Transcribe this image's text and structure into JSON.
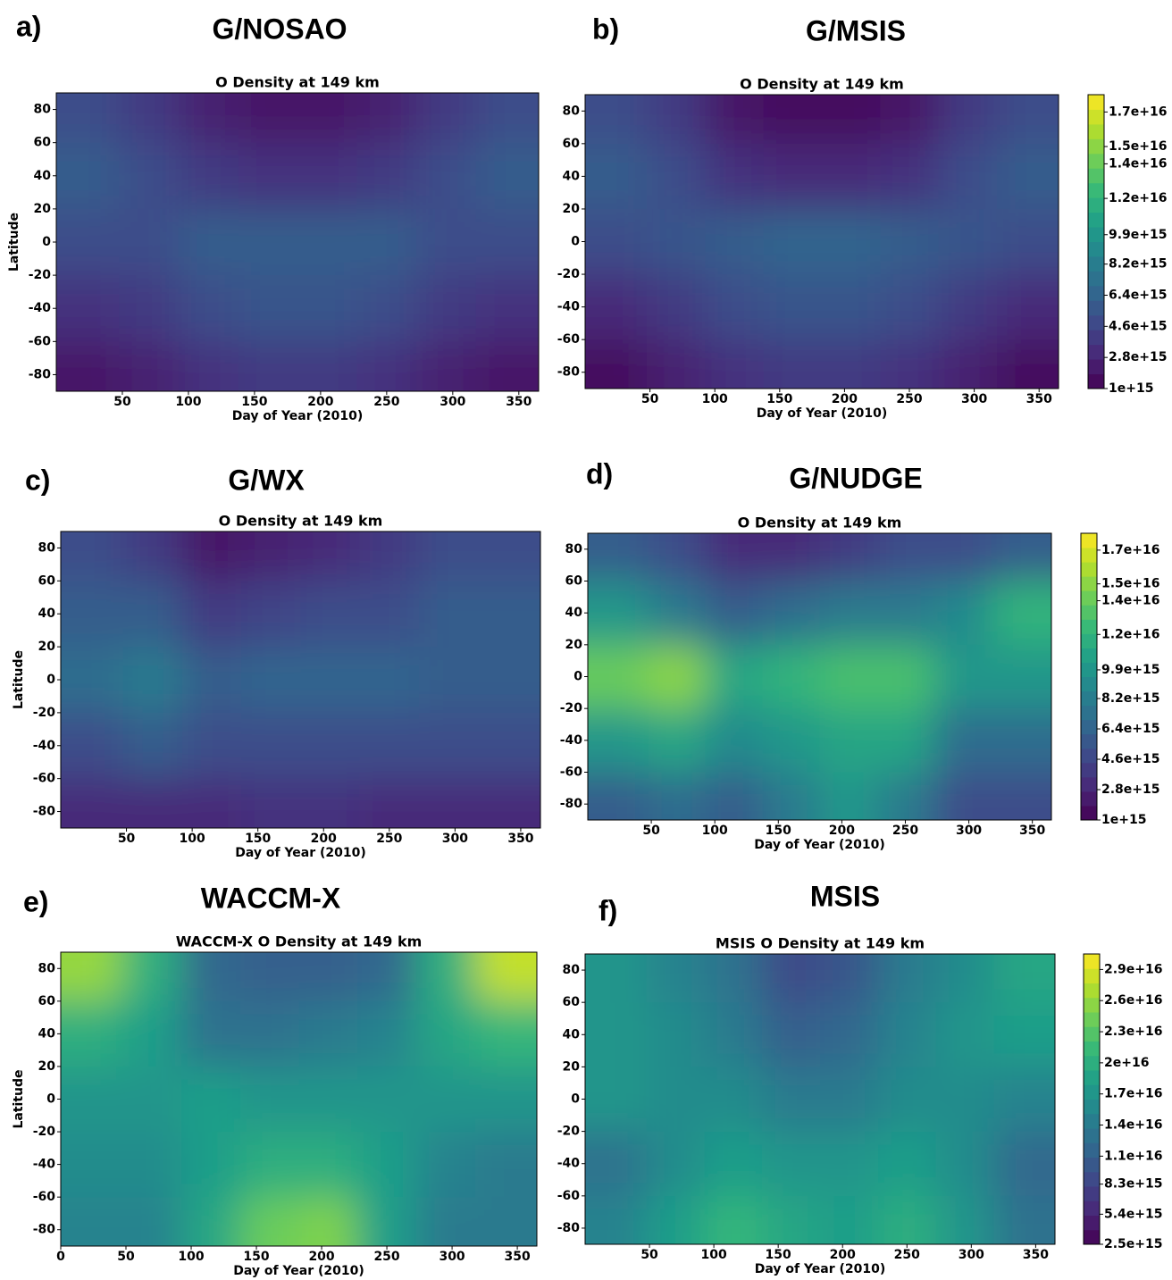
{
  "colormap": [
    "#440154",
    "#482878",
    "#3e4989",
    "#31688e",
    "#26828e",
    "#1f9e89",
    "#35b779",
    "#6ece58",
    "#b5de2b",
    "#fde725"
  ],
  "chart_data": [
    {
      "type": "contour",
      "label": "a)",
      "heading": "G/NOSAO",
      "title": "O Density at 149 km",
      "xlabel": "Day of Year (2010)",
      "ylabel": "Latitude",
      "x": [
        25,
        70,
        115,
        160,
        205,
        250,
        295,
        340
      ],
      "y": [
        80,
        40,
        0,
        -40,
        -80
      ],
      "z": [
        [
          5000000000000000.0,
          4000000000000000.0,
          2500000000000000.0,
          2000000000000000.0,
          2000000000000000.0,
          2500000000000000.0,
          4000000000000000.0,
          5000000000000000.0
        ],
        [
          6000000000000000.0,
          5000000000000000.0,
          4000000000000000.0,
          3500000000000000.0,
          3500000000000000.0,
          4000000000000000.0,
          5000000000000000.0,
          6000000000000000.0
        ],
        [
          5000000000000000.0,
          5000000000000000.0,
          6000000000000000.0,
          6000000000000000.0,
          6000000000000000.0,
          6000000000000000.0,
          5000000000000000.0,
          5000000000000000.0
        ],
        [
          3500000000000000.0,
          4000000000000000.0,
          5000000000000000.0,
          5500000000000000.0,
          5500000000000000.0,
          5000000000000000.0,
          4000000000000000.0,
          3500000000000000.0
        ],
        [
          2000000000000000.0,
          2500000000000000.0,
          3500000000000000.0,
          4000000000000000.0,
          4000000000000000.0,
          3500000000000000.0,
          2500000000000000.0,
          2000000000000000.0
        ]
      ],
      "clim": [
        1000000000000000.0,
        1.8e+16
      ],
      "xlim": [
        0,
        365
      ],
      "ylim": [
        -90,
        90
      ],
      "xticks": [
        50,
        100,
        150,
        200,
        250,
        300,
        350
      ],
      "yticks": [
        -80,
        -60,
        -40,
        -20,
        0,
        20,
        40,
        60,
        80
      ]
    },
    {
      "type": "contour",
      "label": "b)",
      "heading": "G/MSIS",
      "title": "O Density at 149 km",
      "xlabel": "Day of Year (2010)",
      "x": [
        25,
        70,
        115,
        160,
        205,
        250,
        295,
        340
      ],
      "y": [
        80,
        40,
        0,
        -40,
        -80
      ],
      "z": [
        [
          5000000000000000.0,
          4000000000000000.0,
          2000000000000000.0,
          1500000000000000.0,
          1500000000000000.0,
          2000000000000000.0,
          4000000000000000.0,
          5000000000000000.0
        ],
        [
          6000000000000000.0,
          5000000000000000.0,
          3500000000000000.0,
          3000000000000000.0,
          3000000000000000.0,
          3500000000000000.0,
          5000000000000000.0,
          6000000000000000.0
        ],
        [
          5000000000000000.0,
          5500000000000000.0,
          6000000000000000.0,
          6500000000000000.0,
          6500000000000000.0,
          6000000000000000.0,
          5500000000000000.0,
          5000000000000000.0
        ],
        [
          3000000000000000.0,
          4000000000000000.0,
          5000000000000000.0,
          5500000000000000.0,
          5500000000000000.0,
          5000000000000000.0,
          4000000000000000.0,
          3000000000000000.0
        ],
        [
          1500000000000000.0,
          2500000000000000.0,
          3500000000000000.0,
          4000000000000000.0,
          4000000000000000.0,
          3500000000000000.0,
          2500000000000000.0,
          1500000000000000.0
        ]
      ],
      "clim": [
        1000000000000000.0,
        1.8e+16
      ],
      "xlim": [
        0,
        365
      ],
      "ylim": [
        -90,
        90
      ],
      "xticks": [
        50,
        100,
        150,
        200,
        250,
        300,
        350
      ],
      "yticks": [
        -80,
        -60,
        -40,
        -20,
        0,
        20,
        40,
        60,
        80
      ],
      "colorbar": {
        "lim": [
          1000000000000000.0,
          1.8e+16
        ],
        "ticks": [
          {
            "value": 1000000000000000.0,
            "label": "1e+15"
          },
          {
            "value": 2800000000000000.0,
            "label": "2.8e+15"
          },
          {
            "value": 4600000000000000.0,
            "label": "4.6e+15"
          },
          {
            "value": 6400000000000000.0,
            "label": "6.4e+15"
          },
          {
            "value": 8200000000000000.0,
            "label": "8.2e+15"
          },
          {
            "value": 9900000000000000.0,
            "label": "9.9e+15"
          },
          {
            "value": 1.2e+16,
            "label": "1.2e+16"
          },
          {
            "value": 1.4e+16,
            "label": "1.4e+16"
          },
          {
            "value": 1.5e+16,
            "label": "1.5e+16"
          },
          {
            "value": 1.7e+16,
            "label": "1.7e+16"
          }
        ]
      }
    },
    {
      "type": "contour",
      "label": "c)",
      "heading": "G/WX",
      "title": "O Density at 149 km",
      "xlabel": "Day of Year (2010)",
      "ylabel": "Latitude",
      "x": [
        25,
        70,
        115,
        160,
        205,
        250,
        295,
        340
      ],
      "y": [
        80,
        40,
        0,
        -40,
        -80
      ],
      "z": [
        [
          5000000000000000.0,
          4000000000000000.0,
          2000000000000000.0,
          2500000000000000.0,
          3000000000000000.0,
          4000000000000000.0,
          5000000000000000.0,
          5000000000000000.0
        ],
        [
          6000000000000000.0,
          6000000000000000.0,
          4000000000000000.0,
          4500000000000000.0,
          5000000000000000.0,
          5000000000000000.0,
          6000000000000000.0,
          6000000000000000.0
        ],
        [
          7000000000000000.0,
          8000000000000000.0,
          6000000000000000.0,
          6500000000000000.0,
          6500000000000000.0,
          6500000000000000.0,
          6000000000000000.0,
          6000000000000000.0
        ],
        [
          5000000000000000.0,
          6000000000000000.0,
          5000000000000000.0,
          5000000000000000.0,
          5000000000000000.0,
          5000000000000000.0,
          5000000000000000.0,
          5000000000000000.0
        ],
        [
          3000000000000000.0,
          3000000000000000.0,
          3000000000000000.0,
          3500000000000000.0,
          3500000000000000.0,
          3000000000000000.0,
          3000000000000000.0,
          3000000000000000.0
        ]
      ],
      "clim": [
        1000000000000000.0,
        1.8e+16
      ],
      "xlim": [
        0,
        365
      ],
      "ylim": [
        -90,
        90
      ],
      "xticks": [
        50,
        100,
        150,
        200,
        250,
        300,
        350
      ],
      "yticks": [
        -80,
        -60,
        -40,
        -20,
        0,
        20,
        40,
        60,
        80
      ]
    },
    {
      "type": "contour",
      "label": "d)",
      "heading": "G/NUDGE",
      "title": "O Density at 149 km",
      "xlabel": "Day of Year (2010)",
      "x": [
        25,
        70,
        115,
        160,
        205,
        250,
        295,
        340
      ],
      "y": [
        80,
        40,
        0,
        -40,
        -80
      ],
      "z": [
        [
          6000000000000000.0,
          5000000000000000.0,
          3000000000000000.0,
          3000000000000000.0,
          4000000000000000.0,
          5000000000000000.0,
          5000000000000000.0,
          6000000000000000.0
        ],
        [
          1e+16,
          8000000000000000.0,
          6000000000000000.0,
          7000000000000000.0,
          8000000000000000.0,
          8000000000000000.0,
          9000000000000000.0,
          1.2e+16
        ],
        [
          1.4e+16,
          1.5e+16,
          1.1e+16,
          1.2e+16,
          1.3e+16,
          1.3e+16,
          1e+16,
          1e+16
        ],
        [
          1e+16,
          1.1e+16,
          9000000000000000.0,
          1e+16,
          1.1e+16,
          1.1e+16,
          7000000000000000.0,
          7000000000000000.0
        ],
        [
          6000000000000000.0,
          7000000000000000.0,
          6000000000000000.0,
          8000000000000000.0,
          1e+16,
          8000000000000000.0,
          5000000000000000.0,
          5000000000000000.0
        ]
      ],
      "clim": [
        1000000000000000.0,
        1.8e+16
      ],
      "xlim": [
        0,
        365
      ],
      "ylim": [
        -90,
        90
      ],
      "xticks": [
        50,
        100,
        150,
        200,
        250,
        300,
        350
      ],
      "yticks": [
        -80,
        -60,
        -40,
        -20,
        0,
        20,
        40,
        60,
        80
      ],
      "colorbar": {
        "lim": [
          1000000000000000.0,
          1.8e+16
        ],
        "ticks": [
          {
            "value": 1000000000000000.0,
            "label": "1e+15"
          },
          {
            "value": 2800000000000000.0,
            "label": "2.8e+15"
          },
          {
            "value": 4600000000000000.0,
            "label": "4.6e+15"
          },
          {
            "value": 6400000000000000.0,
            "label": "6.4e+15"
          },
          {
            "value": 8200000000000000.0,
            "label": "8.2e+15"
          },
          {
            "value": 9900000000000000.0,
            "label": "9.9e+15"
          },
          {
            "value": 1.2e+16,
            "label": "1.2e+16"
          },
          {
            "value": 1.4e+16,
            "label": "1.4e+16"
          },
          {
            "value": 1.5e+16,
            "label": "1.5e+16"
          },
          {
            "value": 1.7e+16,
            "label": "1.7e+16"
          }
        ]
      }
    },
    {
      "type": "contour",
      "label": "e)",
      "heading": "WACCM-X",
      "title": "WACCM-X O Density at 149 km",
      "xlabel": "Day of Year (2010)",
      "ylabel": "Latitude",
      "x": [
        25,
        70,
        115,
        160,
        205,
        250,
        295,
        340
      ],
      "y": [
        80,
        40,
        0,
        -40,
        -80
      ],
      "z": [
        [
          2.6e+16,
          2e+16,
          1.2e+16,
          1.1e+16,
          1.1e+16,
          1.2e+16,
          2e+16,
          2.8e+16
        ],
        [
          2e+16,
          1.8e+16,
          1.3e+16,
          1.3e+16,
          1.4e+16,
          1.5e+16,
          1.9e+16,
          2.1e+16
        ],
        [
          1.7e+16,
          1.7e+16,
          1.8e+16,
          1.7e+16,
          1.7e+16,
          1.7e+16,
          1.7e+16,
          1.7e+16
        ],
        [
          1.6e+16,
          1.6e+16,
          1.8e+16,
          2e+16,
          2e+16,
          1.8e+16,
          1.5e+16,
          1.4e+16
        ],
        [
          1.5e+16,
          1.5e+16,
          1.9e+16,
          2.4e+16,
          2.5e+16,
          1.8e+16,
          1.4e+16,
          1.4e+16
        ]
      ],
      "clim": [
        2500000000000000.0,
        3.05e+16
      ],
      "xlim": [
        0,
        365
      ],
      "ylim": [
        -90,
        90
      ],
      "xticks": [
        0,
        50,
        100,
        150,
        200,
        250,
        300,
        350
      ],
      "yticks": [
        -80,
        -60,
        -40,
        -20,
        0,
        20,
        40,
        60,
        80
      ]
    },
    {
      "type": "contour",
      "label": "f)",
      "heading": "MSIS",
      "title": "MSIS O Density at 149 km",
      "xlabel": "Day of Year (2010)",
      "x": [
        25,
        70,
        115,
        160,
        205,
        250,
        295,
        340
      ],
      "y": [
        80,
        40,
        0,
        -40,
        -80
      ],
      "z": [
        [
          1.7e+16,
          1.5e+16,
          1.3e+16,
          9000000000000000.0,
          1e+16,
          1.4e+16,
          1.6e+16,
          1.9e+16
        ],
        [
          1.7e+16,
          1.6e+16,
          1.4e+16,
          1.1e+16,
          1.2e+16,
          1.5e+16,
          1.7e+16,
          1.8e+16
        ],
        [
          1.7e+16,
          1.6e+16,
          1.6e+16,
          1.4e+16,
          1.4e+16,
          1.6e+16,
          1.6e+16,
          1.5e+16
        ],
        [
          1.3e+16,
          1.6e+16,
          1.8e+16,
          1.7e+16,
          1.7e+16,
          1.8e+16,
          1.6e+16,
          1.2e+16
        ],
        [
          1.5e+16,
          1.8e+16,
          2.1e+16,
          1.9e+16,
          1.8e+16,
          2e+16,
          1.7e+16,
          1.3e+16
        ]
      ],
      "clim": [
        2500000000000000.0,
        3.05e+16
      ],
      "xlim": [
        0,
        365
      ],
      "ylim": [
        -90,
        90
      ],
      "xticks": [
        50,
        100,
        150,
        200,
        250,
        300,
        350
      ],
      "yticks": [
        -80,
        -60,
        -40,
        -20,
        0,
        20,
        40,
        60,
        80
      ],
      "colorbar": {
        "lim": [
          2500000000000000.0,
          3.05e+16
        ],
        "ticks": [
          {
            "value": 2500000000000000.0,
            "label": "2.5e+15"
          },
          {
            "value": 5400000000000000.0,
            "label": "5.4e+15"
          },
          {
            "value": 8300000000000000.0,
            "label": "8.3e+15"
          },
          {
            "value": 1.1e+16,
            "label": "1.1e+16"
          },
          {
            "value": 1.4e+16,
            "label": "1.4e+16"
          },
          {
            "value": 1.7e+16,
            "label": "1.7e+16"
          },
          {
            "value": 2e+16,
            "label": "2e+16"
          },
          {
            "value": 2.3e+16,
            "label": "2.3e+16"
          },
          {
            "value": 2.6e+16,
            "label": "2.6e+16"
          },
          {
            "value": 2.9e+16,
            "label": "2.9e+16"
          }
        ]
      }
    }
  ]
}
